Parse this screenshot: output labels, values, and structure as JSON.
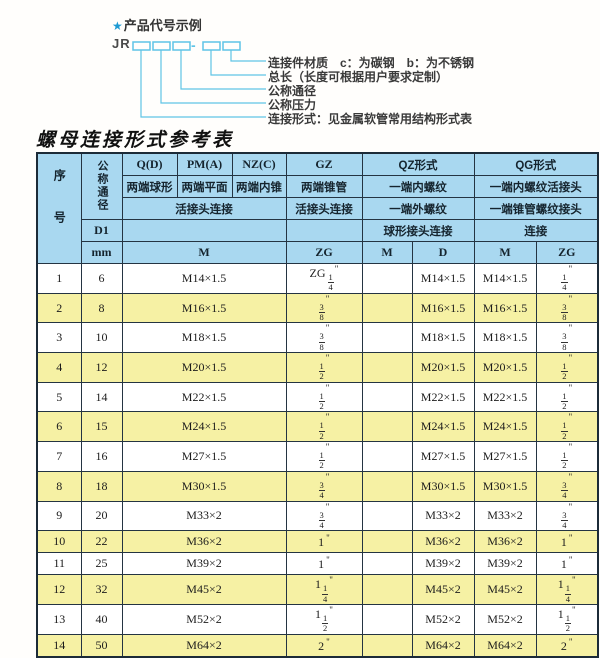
{
  "diagram": {
    "star": "★",
    "title": "产品代号示例",
    "prefix": "JR",
    "dash": "-",
    "slot_count": 5,
    "labels": [
      "连接件材质　c：为碳钢　b：为不锈钢",
      "总长（长度可根据用户要求定制）",
      "公称通径",
      "公称压力",
      "连接形式：见金属软管常用结构形式表"
    ]
  },
  "table": {
    "title": "螺母连接形式参考表",
    "header": {
      "seq": "序号",
      "dn": "公称通径",
      "d1": "D1",
      "mm": "mm",
      "groups": [
        "Q(D)",
        "PM(A)",
        "NZ(C)",
        "GZ",
        "QZ形式",
        "QG形式"
      ],
      "row2": [
        "两端球形",
        "两端平面",
        "两端内锥",
        "两端锥管",
        "一端内螺纹",
        "一端内螺纹活接头"
      ],
      "row3": [
        "活接头连接",
        "活接头连接",
        "一端外螺纹",
        "一端锥管螺纹接头"
      ],
      "row4": [
        "球形接头连接",
        "连接"
      ],
      "units": [
        "M",
        "ZG",
        "M",
        "D",
        "M",
        "ZG"
      ]
    },
    "rows": [
      {
        "seq": "1",
        "dn": "6",
        "m": "M14×1.5",
        "gz": "ZG 1/4",
        "qz_m": "",
        "qz_d": "M14×1.5",
        "qg_m": "M14×1.5",
        "qg_zg": "1/4"
      },
      {
        "seq": "2",
        "dn": "8",
        "m": "M16×1.5",
        "gz": "3/8",
        "qz_m": "",
        "qz_d": "M16×1.5",
        "qg_m": "M16×1.5",
        "qg_zg": "3/8"
      },
      {
        "seq": "3",
        "dn": "10",
        "m": "M18×1.5",
        "gz": "3/8",
        "qz_m": "",
        "qz_d": "M18×1.5",
        "qg_m": "M18×1.5",
        "qg_zg": "3/8"
      },
      {
        "seq": "4",
        "dn": "12",
        "m": "M20×1.5",
        "gz": "1/2",
        "qz_m": "",
        "qz_d": "M20×1.5",
        "qg_m": "M20×1.5",
        "qg_zg": "1/2"
      },
      {
        "seq": "5",
        "dn": "14",
        "m": "M22×1.5",
        "gz": "1/2",
        "qz_m": "",
        "qz_d": "M22×1.5",
        "qg_m": "M22×1.5",
        "qg_zg": "1/2"
      },
      {
        "seq": "6",
        "dn": "15",
        "m": "M24×1.5",
        "gz": "1/2",
        "qz_m": "",
        "qz_d": "M24×1.5",
        "qg_m": "M24×1.5",
        "qg_zg": "1/2"
      },
      {
        "seq": "7",
        "dn": "16",
        "m": "M27×1.5",
        "gz": "1/2",
        "qz_m": "",
        "qz_d": "M27×1.5",
        "qg_m": "M27×1.5",
        "qg_zg": "1/2"
      },
      {
        "seq": "8",
        "dn": "18",
        "m": "M30×1.5",
        "gz": "3/4",
        "qz_m": "",
        "qz_d": "M30×1.5",
        "qg_m": "M30×1.5",
        "qg_zg": "3/4"
      },
      {
        "seq": "9",
        "dn": "20",
        "m": "M33×2",
        "gz": "3/4",
        "qz_m": "",
        "qz_d": "M33×2",
        "qg_m": "M33×2",
        "qg_zg": "3/4"
      },
      {
        "seq": "10",
        "dn": "22",
        "m": "M36×2",
        "gz": "1",
        "qz_m": "",
        "qz_d": "M36×2",
        "qg_m": "M36×2",
        "qg_zg": "1"
      },
      {
        "seq": "11",
        "dn": "25",
        "m": "M39×2",
        "gz": "1",
        "qz_m": "",
        "qz_d": "M39×2",
        "qg_m": "M39×2",
        "qg_zg": "1"
      },
      {
        "seq": "12",
        "dn": "32",
        "m": "M45×2",
        "gz": "1 1/4",
        "qz_m": "",
        "qz_d": "M45×2",
        "qg_m": "M45×2",
        "qg_zg": "1 1/4"
      },
      {
        "seq": "13",
        "dn": "40",
        "m": "M52×2",
        "gz": "1 1/2",
        "qz_m": "",
        "qz_d": "M52×2",
        "qg_m": "M52×2",
        "qg_zg": "1 1/2"
      },
      {
        "seq": "14",
        "dn": "50",
        "m": "M64×2",
        "gz": "2",
        "qz_m": "",
        "qz_d": "M64×2",
        "qg_m": "M64×2",
        "qg_zg": "2"
      }
    ]
  },
  "colors": {
    "header_bg": "#a9d8f0",
    "row_alt_bg": "#f6f1a4",
    "row_bg": "#ffffff",
    "table_border": "#1c2b38",
    "diagram_line": "#5fc4e6",
    "star": "#1d9ad3"
  }
}
